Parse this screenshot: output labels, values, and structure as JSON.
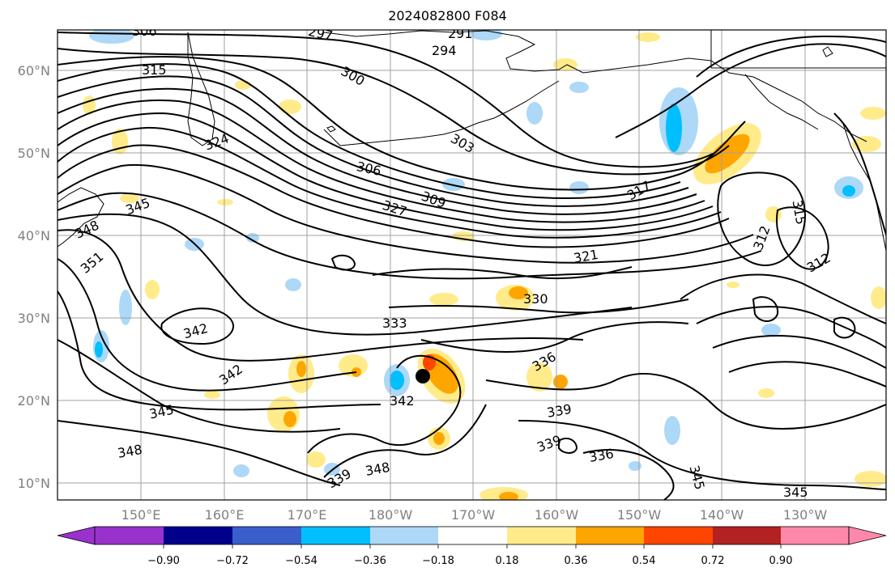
{
  "title": "2024082800 F084",
  "colors": {
    "background": "#ffffff",
    "grid": "#a0a0a0",
    "contour": "#000000",
    "coast": "#000000"
  },
  "map": {
    "lat_labels": [
      "60°N",
      "50°N",
      "40°N",
      "30°N",
      "20°N",
      "10°N"
    ],
    "lon_labels": [
      "150°E",
      "160°E",
      "170°E",
      "180°W",
      "170°W",
      "160°W",
      "150°W",
      "140°W",
      "130°W"
    ],
    "contour_labels": [
      "306",
      "297",
      "291",
      "294",
      "300",
      "315",
      "324",
      "303",
      "306",
      "309",
      "327",
      "345",
      "348",
      "351",
      "317",
      "312",
      "315",
      "312",
      "321",
      "330",
      "333",
      "342",
      "342",
      "336",
      "342",
      "345",
      "339",
      "348",
      "339",
      "336",
      "339",
      "348",
      "345",
      "345"
    ],
    "marker": "filled-circle"
  },
  "colorbar": {
    "tick_labels": [
      "−0.90",
      "−0.72",
      "−0.54",
      "−0.36",
      "−0.18",
      "0.18",
      "0.36",
      "0.54",
      "0.72",
      "0.90"
    ],
    "colors": [
      "#9932cc",
      "#00008b",
      "#3a5fcd",
      "#00bfff",
      "#add8f7",
      "#ffffff",
      "#ffeb8a",
      "#ffa500",
      "#ff4500",
      "#b22222",
      "#ff88aa"
    ]
  }
}
